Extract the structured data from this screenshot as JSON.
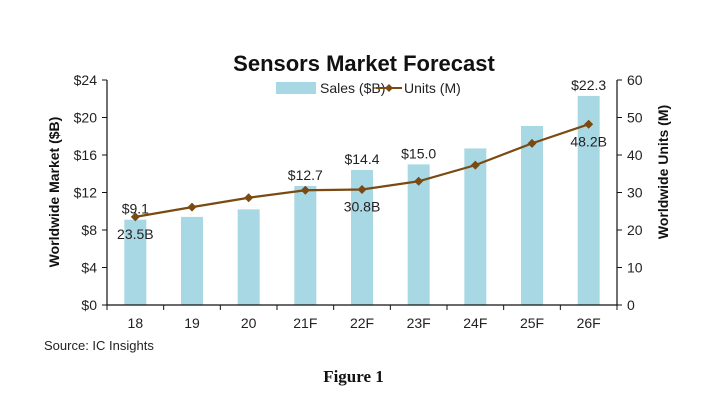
{
  "chart_data": {
    "type": "bar",
    "title": "Sensors Market Forecast",
    "categories": [
      "18",
      "19",
      "20",
      "21F",
      "22F",
      "23F",
      "24F",
      "25F",
      "26F"
    ],
    "series": [
      {
        "name": "Sales ($B)",
        "type": "bar",
        "axis": "left",
        "values": [
          9.1,
          9.4,
          10.2,
          12.7,
          14.4,
          15.0,
          16.7,
          19.1,
          22.3
        ],
        "color": "#a8d8e4"
      },
      {
        "name": "Units (M)",
        "type": "line",
        "axis": "right",
        "values": [
          23.5,
          26.1,
          28.6,
          30.6,
          30.8,
          33.0,
          37.3,
          43.1,
          48.2
        ],
        "color": "#7a4a12"
      }
    ],
    "ylabel": "Worldwide Market ($B)",
    "y2label": "Worldwide Units (M)",
    "ylim": [
      0,
      24
    ],
    "y2lim": [
      0,
      60
    ],
    "yticks": [
      "$0",
      "$4",
      "$8",
      "$12",
      "$16",
      "$20",
      "$24"
    ],
    "y2ticks": [
      "0",
      "10",
      "20",
      "30",
      "40",
      "50",
      "60"
    ],
    "bar_labels": [
      {
        "index": 0,
        "text": "$9.1"
      },
      {
        "index": 3,
        "text": "$12.7"
      },
      {
        "index": 4,
        "text": "$14.4"
      },
      {
        "index": 5,
        "text": "$15.0"
      },
      {
        "index": 8,
        "text": "$22.3"
      }
    ],
    "line_labels": [
      {
        "index": 0,
        "text": "23.5B"
      },
      {
        "index": 4,
        "text": "30.8B"
      },
      {
        "index": 8,
        "text": "48.2B"
      }
    ],
    "legend_position": "top-center",
    "grid": false
  },
  "source": "Source: IC Insights",
  "caption": "Figure 1"
}
